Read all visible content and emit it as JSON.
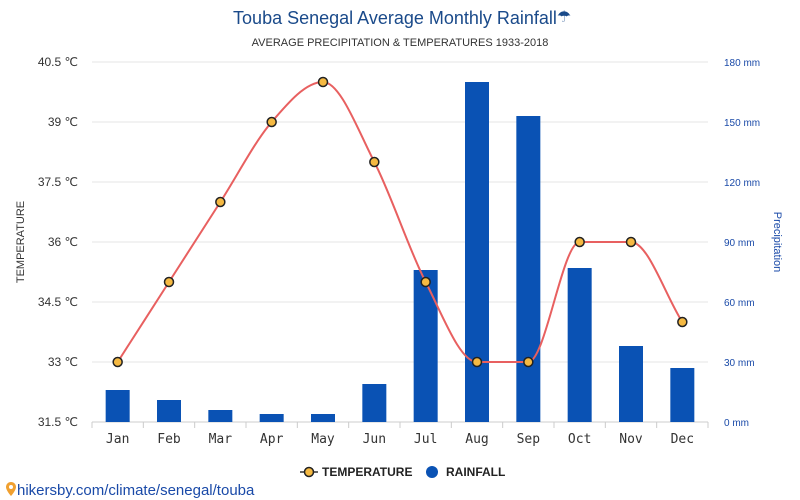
{
  "chart_data": {
    "type": "bar",
    "title": "Touba Senegal Average Monthly Rainfall",
    "title_icon": "☂",
    "subtitle": "AVERAGE PRECIPITATION & TEMPERATURES 1933-2018",
    "categories": [
      "Jan",
      "Feb",
      "Mar",
      "Apr",
      "May",
      "Jun",
      "Jul",
      "Aug",
      "Sep",
      "Oct",
      "Nov",
      "Dec"
    ],
    "series": [
      {
        "name": "TEMPERATURE",
        "type": "line",
        "axis": "left",
        "unit": "℃",
        "color": "#e86060",
        "marker_fill": "#f5b942",
        "values": [
          33,
          35,
          37,
          39,
          40,
          38,
          35,
          33,
          33,
          36,
          36,
          34
        ]
      },
      {
        "name": "RAINFALL",
        "type": "bar",
        "axis": "right",
        "unit": "mm",
        "color": "#0a52b4",
        "values": [
          16,
          11,
          6,
          4,
          4,
          19,
          76,
          170,
          153,
          77,
          38,
          27
        ]
      }
    ],
    "y_left": {
      "label": "TEMPERATURE",
      "ylim": [
        31.5,
        40.5
      ],
      "ticks": [
        "31.5 ℃",
        "33 ℃",
        "34.5 ℃",
        "36 ℃",
        "37.5 ℃",
        "39 ℃",
        "40.5 ℃"
      ],
      "tick_values": [
        31.5,
        33,
        34.5,
        36,
        37.5,
        39,
        40.5
      ]
    },
    "y_right": {
      "label": "Precipitation",
      "ylim": [
        0,
        180
      ],
      "ticks": [
        "0 mm",
        "30 mm",
        "60 mm",
        "90 mm",
        "120 mm",
        "150 mm",
        "180 mm"
      ],
      "tick_values": [
        0,
        30,
        60,
        90,
        120,
        150,
        180
      ]
    },
    "grid": true,
    "legend_position": "bottom-center"
  },
  "footer": {
    "source": "hikersby.com/climate/senegal/touba",
    "icon": "map-pin-icon",
    "color": "#1a4aa8"
  }
}
